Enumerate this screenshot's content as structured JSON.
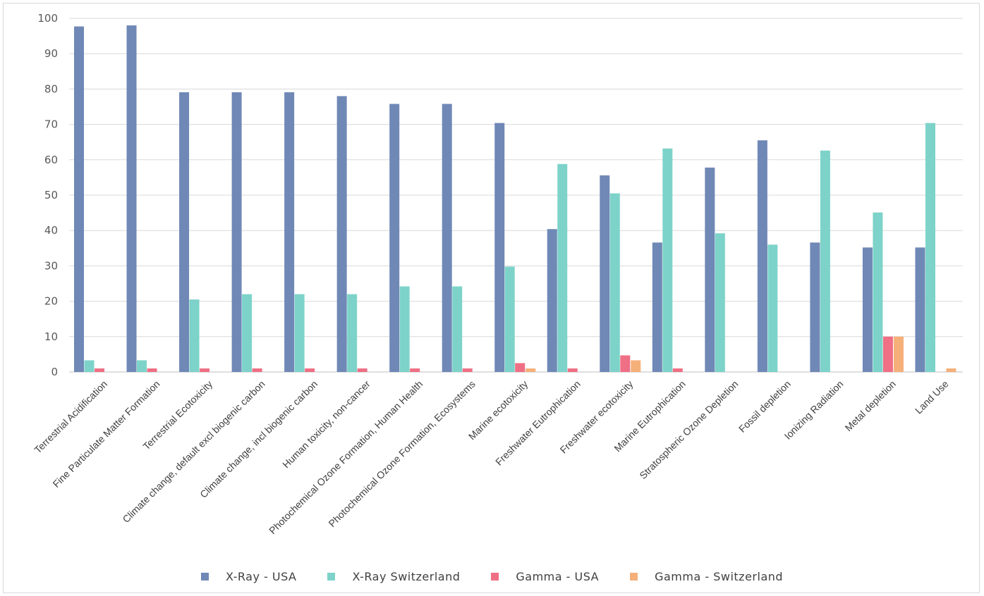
{
  "chart_data": {
    "type": "bar",
    "title": "",
    "xlabel": "",
    "ylabel": "",
    "ylim": [
      0,
      100
    ],
    "yticks": [
      0,
      10,
      20,
      30,
      40,
      50,
      60,
      70,
      80,
      90,
      100
    ],
    "grid": true,
    "legend_position": "bottom",
    "categories": [
      "Terrestrial Acidification",
      "Fine Particulate Matter Formation",
      "Terrestrial Ecotoxicity",
      "Climate change, default excl biogenic carbon",
      "Climate change, incl biogenic carbon",
      "Human toxicity, non-cancer",
      "Photochemical Ozone Formation, Human Health",
      "Photochemical Ozone Formation, Ecosystems",
      "Marine ecotoxicity",
      "Freshwater Eutrophication",
      "Freshwater ecotoxicity",
      "Marine Eutrophication",
      "Stratospheric Ozone Depletion",
      "Fossil depletion",
      "Ionizing Radiation",
      "Metal depletion",
      "Land Use"
    ],
    "series": [
      {
        "name": "X-Ray - USA",
        "color": "#6f88b6",
        "values": [
          97.7,
          98,
          79.1,
          79.1,
          79.1,
          78,
          75.8,
          75.8,
          70.4,
          40.4,
          55.6,
          36.6,
          57.8,
          65.5,
          36.6,
          35.2,
          35.2
        ]
      },
      {
        "name": "X-Ray Switzerland",
        "color": "#7dd3c9",
        "values": [
          3.3,
          3.3,
          20.5,
          22,
          22,
          22,
          24.2,
          24.2,
          29.8,
          58.8,
          50.5,
          63.2,
          39.2,
          36,
          62.6,
          45.1,
          70.4
        ]
      },
      {
        "name": "Gamma - USA",
        "color": "#ef6f84",
        "values": [
          1,
          1,
          1,
          1,
          1,
          1,
          1,
          1,
          2.5,
          1,
          4.7,
          1,
          0,
          0,
          0,
          10,
          0
        ]
      },
      {
        "name": "Gamma - Switzerland",
        "color": "#f5b07a",
        "values": [
          0,
          0,
          0,
          0,
          0,
          0,
          0,
          0,
          1,
          0,
          3.3,
          0,
          0,
          0,
          0,
          10,
          1
        ]
      }
    ]
  }
}
